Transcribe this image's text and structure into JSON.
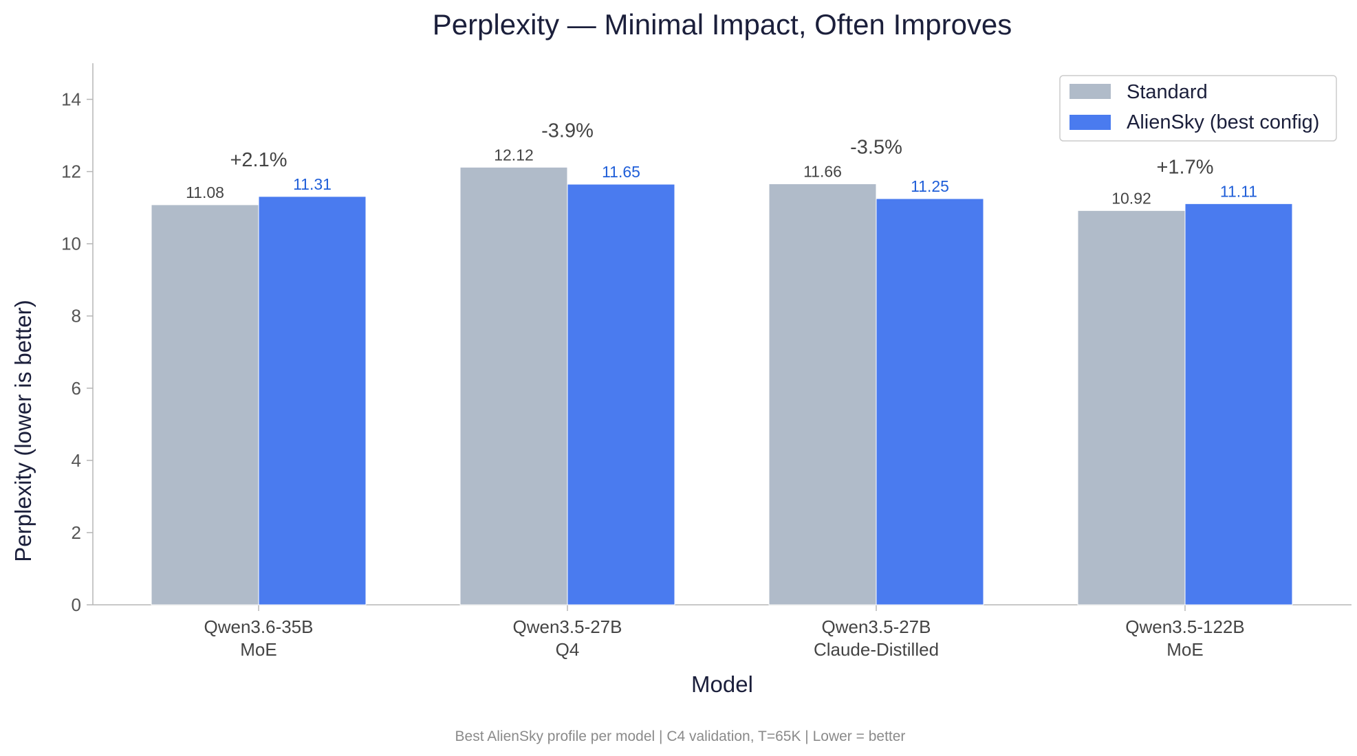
{
  "chart_data": {
    "type": "bar",
    "title": "Perplexity — Minimal Impact, Often Improves",
    "xlabel": "Model",
    "ylabel": "Perplexity (lower is better)",
    "ylim": [
      0,
      15
    ],
    "yticks": [
      0,
      2,
      4,
      6,
      8,
      10,
      12,
      14
    ],
    "grid": false,
    "legend_position": "top-right",
    "categories": [
      [
        "Qwen3.6-35B",
        "MoE"
      ],
      [
        "Qwen3.5-27B",
        "Q4"
      ],
      [
        "Qwen3.5-27B",
        "Claude-Distilled"
      ],
      [
        "Qwen3.5-122B",
        "MoE"
      ]
    ],
    "series": [
      {
        "name": "Standard",
        "color": "#b0bbc9",
        "values": [
          11.08,
          12.12,
          11.66,
          10.92
        ],
        "labels": [
          "11.08",
          "12.12",
          "11.66",
          "10.92"
        ]
      },
      {
        "name": "AlienSky (best config)",
        "color": "#4a7bef",
        "values": [
          11.31,
          11.65,
          11.25,
          11.11
        ],
        "labels": [
          "11.31",
          "11.65",
          "11.25",
          "11.11"
        ]
      }
    ],
    "annotations": [
      "+2.1%",
      "-3.9%",
      "-3.5%",
      "+1.7%"
    ],
    "footnote": "Best AlienSky profile per model | C4 validation, T=65K | Lower = better"
  }
}
